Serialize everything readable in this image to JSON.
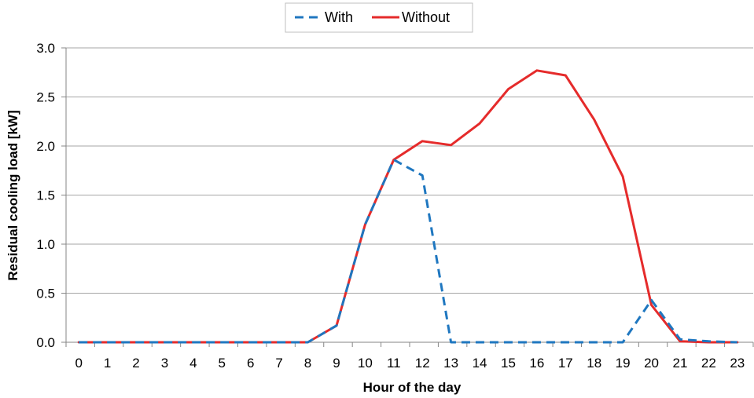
{
  "chart_data": {
    "type": "line",
    "title": "",
    "xlabel": "Hour of the day",
    "ylabel": "Residual cooling load [kW]",
    "x": [
      0,
      1,
      2,
      3,
      4,
      5,
      6,
      7,
      8,
      9,
      10,
      11,
      12,
      13,
      14,
      15,
      16,
      17,
      18,
      19,
      20,
      21,
      22,
      23
    ],
    "x_tick_labels": [
      "0",
      "1",
      "2",
      "3",
      "4",
      "5",
      "6",
      "7",
      "8",
      "9",
      "10",
      "11",
      "12",
      "13",
      "14",
      "15",
      "16",
      "17",
      "18",
      "19",
      "20",
      "21",
      "22",
      "23"
    ],
    "ylim": [
      0,
      3
    ],
    "y_ticks": [
      0,
      0.5,
      1,
      1.5,
      2,
      2.5,
      3
    ],
    "y_tick_labels": [
      "0.0",
      "0.5",
      "1.0",
      "1.5",
      "2.0",
      "2.5",
      "3.0"
    ],
    "grid": "horizontal",
    "legend_position": "top-center",
    "series": [
      {
        "name": "With",
        "color": "#1f77c0",
        "style": "dashed",
        "values": [
          0,
          0,
          0,
          0,
          0,
          0,
          0,
          0,
          0,
          0.17,
          1.2,
          1.86,
          1.7,
          0,
          0,
          0,
          0,
          0,
          0,
          0,
          0.43,
          0.03,
          0.01,
          0
        ]
      },
      {
        "name": "Without",
        "color": "#e52b2b",
        "style": "solid",
        "values": [
          0,
          0,
          0,
          0,
          0,
          0,
          0,
          0,
          0,
          0.17,
          1.2,
          1.86,
          2.05,
          2.01,
          2.23,
          2.58,
          2.77,
          2.72,
          2.27,
          1.69,
          0.38,
          0.01,
          0,
          0
        ]
      }
    ]
  }
}
